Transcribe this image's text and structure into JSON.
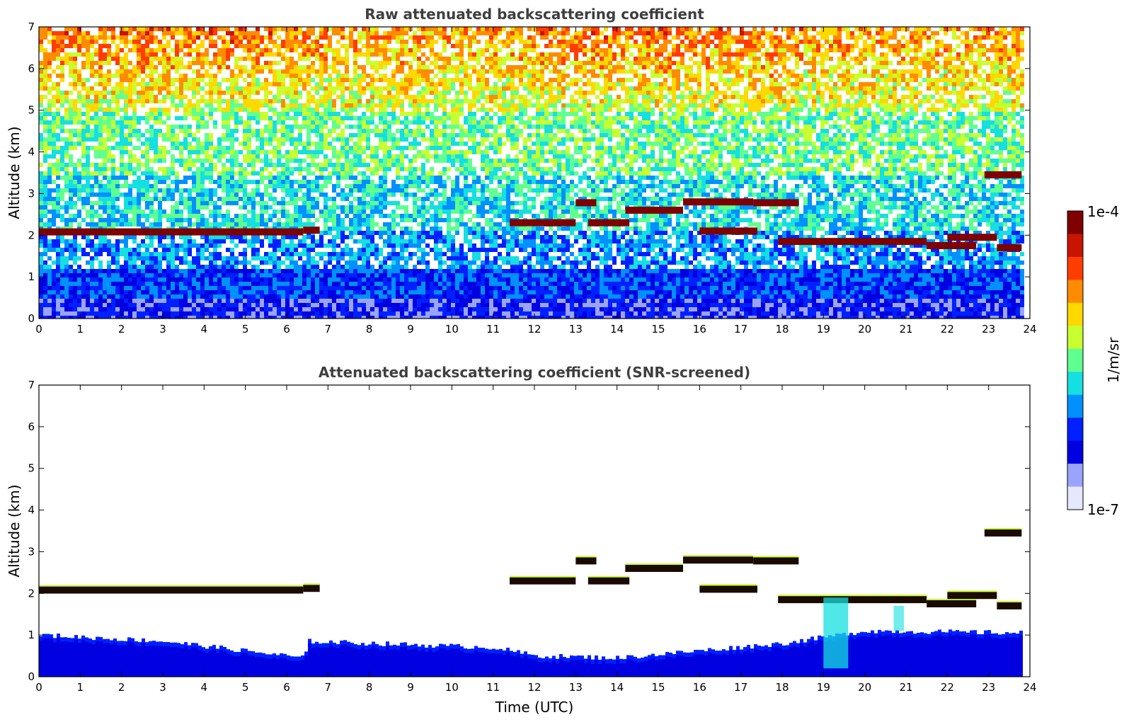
{
  "chart_data": [
    {
      "type": "heatmap",
      "title": "Raw attenuated backscattering coefficient",
      "xlabel": "",
      "ylabel": "Altitude (km)",
      "xlim": [
        0,
        24
      ],
      "ylim": [
        0,
        7
      ],
      "x_ticks": [
        "0",
        "1",
        "2",
        "3",
        "4",
        "5",
        "6",
        "7",
        "8",
        "9",
        "10",
        "11",
        "12",
        "13",
        "14",
        "15",
        "16",
        "17",
        "18",
        "19",
        "20",
        "21",
        "22",
        "23",
        "24"
      ],
      "y_ticks": [
        "0",
        "1",
        "2",
        "3",
        "4",
        "5",
        "6",
        "7"
      ],
      "data_end_time": 23.8,
      "layers": [
        {
          "t_start": 0.0,
          "t_end": 6.4,
          "altitude_km": 2.08
        },
        {
          "t_start": 6.4,
          "t_end": 6.8,
          "altitude_km": 2.12
        },
        {
          "t_start": 11.4,
          "t_end": 13.0,
          "altitude_km": 2.3
        },
        {
          "t_start": 13.0,
          "t_end": 13.5,
          "altitude_km": 2.78
        },
        {
          "t_start": 13.3,
          "t_end": 14.3,
          "altitude_km": 2.3
        },
        {
          "t_start": 14.2,
          "t_end": 15.6,
          "altitude_km": 2.6
        },
        {
          "t_start": 15.6,
          "t_end": 17.3,
          "altitude_km": 2.8
        },
        {
          "t_start": 17.3,
          "t_end": 18.4,
          "altitude_km": 2.78
        },
        {
          "t_start": 16.0,
          "t_end": 17.4,
          "altitude_km": 2.1
        },
        {
          "t_start": 17.9,
          "t_end": 21.5,
          "altitude_km": 1.85
        },
        {
          "t_start": 21.5,
          "t_end": 22.7,
          "altitude_km": 1.75
        },
        {
          "t_start": 22.0,
          "t_end": 23.2,
          "altitude_km": 1.95
        },
        {
          "t_start": 23.2,
          "t_end": 23.8,
          "altitude_km": 1.7
        },
        {
          "t_start": 22.9,
          "t_end": 23.8,
          "altitude_km": 3.45
        }
      ]
    },
    {
      "type": "heatmap",
      "title": "Attenuated backscattering coefficient (SNR-screened)",
      "xlabel": "Time (UTC)",
      "ylabel": "Altitude (km)",
      "xlim": [
        0,
        24
      ],
      "ylim": [
        0,
        7
      ],
      "x_ticks": [
        "0",
        "1",
        "2",
        "3",
        "4",
        "5",
        "6",
        "7",
        "8",
        "9",
        "10",
        "11",
        "12",
        "13",
        "14",
        "15",
        "16",
        "17",
        "18",
        "19",
        "20",
        "21",
        "22",
        "23",
        "24"
      ],
      "y_ticks": [
        "0",
        "1",
        "2",
        "3",
        "4",
        "5",
        "6",
        "7"
      ],
      "data_end_time": 23.8,
      "boundary_layer_top_km": [
        {
          "t": 0,
          "v": 1.0
        },
        {
          "t": 3,
          "v": 0.85
        },
        {
          "t": 6.4,
          "v": 0.45
        },
        {
          "t": 6.5,
          "v": 0.85
        },
        {
          "t": 11,
          "v": 0.7
        },
        {
          "t": 12,
          "v": 0.5
        },
        {
          "t": 14,
          "v": 0.45
        },
        {
          "t": 18,
          "v": 0.8
        },
        {
          "t": 20,
          "v": 1.1
        },
        {
          "t": 23.8,
          "v": 1.05
        }
      ]
    }
  ],
  "colorbar": {
    "max_label": "1e-4",
    "min_label": "1e-7",
    "units_label": "1/m/sr",
    "scale": "log",
    "colors": [
      "#7f0000",
      "#c81400",
      "#ff3d00",
      "#ff8c00",
      "#ffd800",
      "#c8ff30",
      "#60ff90",
      "#15dfe0",
      "#0090ff",
      "#0020ff",
      "#0000e0",
      "#9aa4ff",
      "#e6e8ff"
    ]
  }
}
